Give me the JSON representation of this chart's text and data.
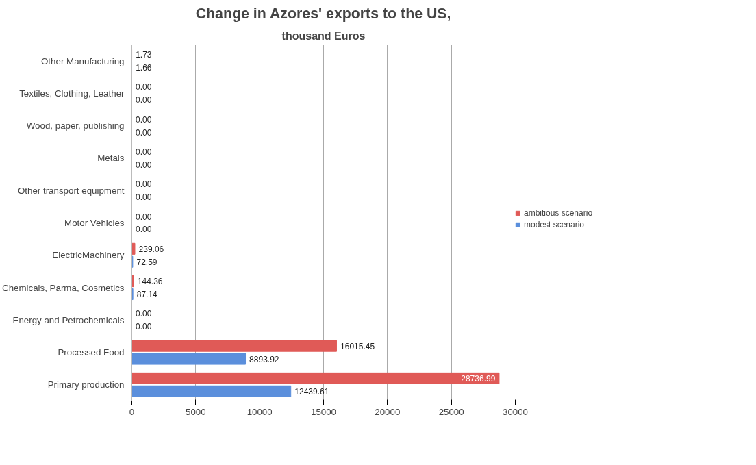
{
  "chart_data": {
    "type": "bar",
    "orientation": "horizontal",
    "title": "Change in Azores' exports to the US,",
    "subtitle": "thousand Euros",
    "categories": [
      "Other Manufacturing",
      "Textiles, Clothing, Leather",
      "Wood, paper, publishing",
      "Metals",
      "Other transport equipment",
      "Motor Vehicles",
      "ElectricMachinery",
      "Chemicals, Parma, Cosmetics",
      "Energy and Petrochemicals",
      "Processed Food",
      "Primary production"
    ],
    "series": [
      {
        "name": "ambitious scenario",
        "color": "#e05a57",
        "values": [
          1.73,
          0,
          0,
          0,
          0,
          0,
          239.06,
          144.36,
          0,
          16015.45,
          28736.99
        ],
        "value_labels": [
          "1.73",
          "0.00",
          "0.00",
          "0.00",
          "0.00",
          "0.00",
          "239.06",
          "144.36",
          "0.00",
          "16015.45",
          "28736.99"
        ]
      },
      {
        "name": "modest scenario",
        "color": "#5b8fdc",
        "values": [
          1.66,
          0,
          0,
          0,
          0,
          0,
          72.59,
          87.14,
          0,
          8893.92,
          12439.61
        ],
        "value_labels": [
          "1.66",
          "0.00",
          "0.00",
          "0.00",
          "0.00",
          "0.00",
          "72.59",
          "87.14",
          "0.00",
          "8893.92",
          "12439.61"
        ]
      }
    ],
    "xlim": [
      0,
      30000
    ],
    "xticks": [
      0,
      5000,
      10000,
      15000,
      20000,
      25000,
      30000
    ],
    "grid": "x",
    "legend": "right"
  }
}
